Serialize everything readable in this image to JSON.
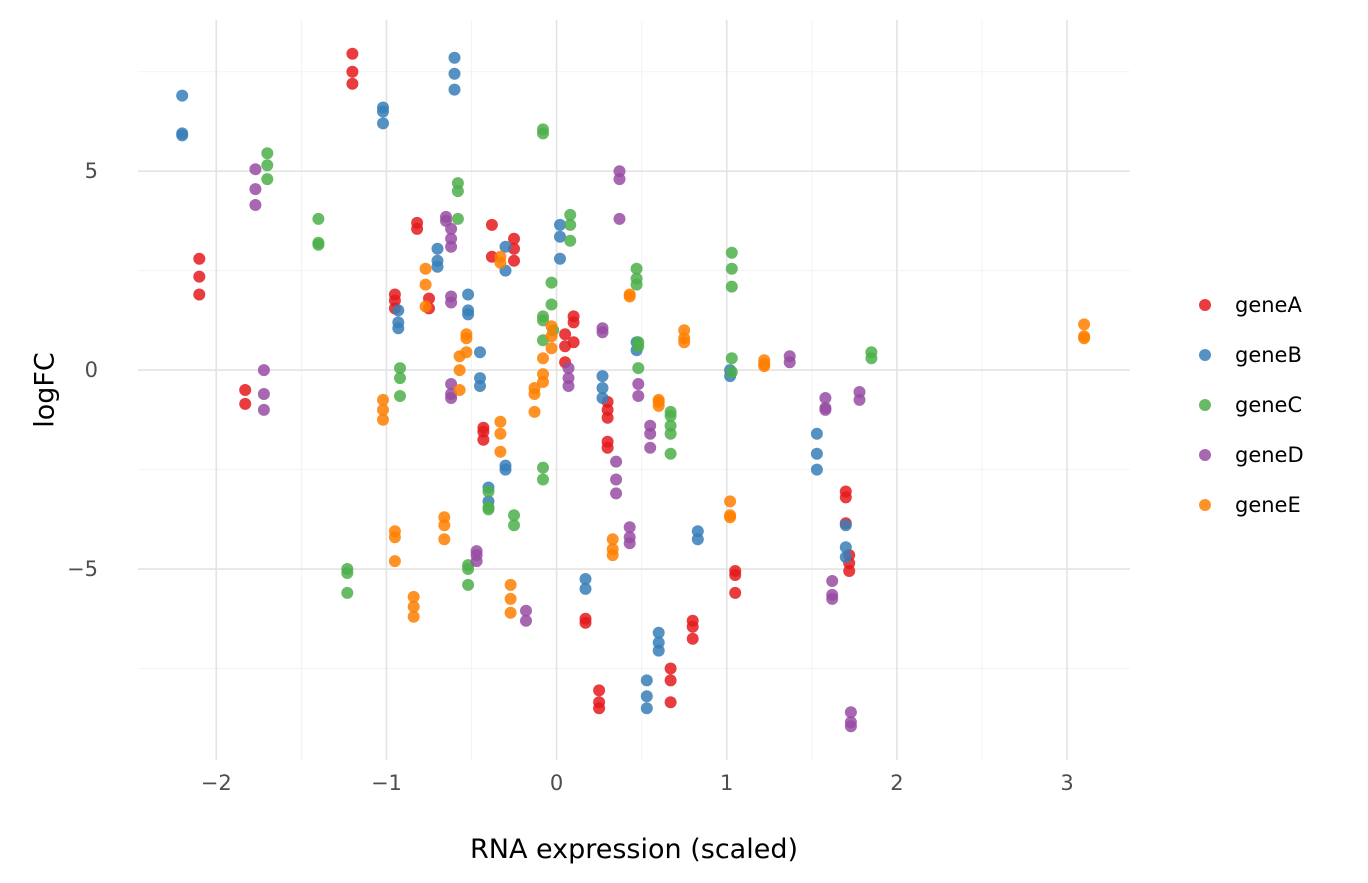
{
  "chart_data": {
    "type": "scatter",
    "title": "",
    "xlabel": "RNA expression (scaled)",
    "ylabel": "logFC",
    "xlim": [
      -2.46,
      3.37
    ],
    "ylim": [
      -9.8,
      8.8
    ],
    "x_ticks": [
      -2,
      -1,
      0,
      1,
      2,
      3
    ],
    "x_tick_labels": [
      "−2",
      "−1",
      "0",
      "1",
      "2",
      "3"
    ],
    "y_ticks": [
      -5,
      0,
      5
    ],
    "y_tick_labels": [
      "−5",
      "0",
      "5"
    ],
    "grid": true,
    "legend": "right",
    "series": [
      {
        "name": "geneA",
        "color": "#e41a1c",
        "points": [
          [
            -1.2,
            7.95
          ],
          [
            -1.2,
            7.5
          ],
          [
            -1.2,
            7.2
          ],
          [
            -2.1,
            2.8
          ],
          [
            -2.1,
            2.35
          ],
          [
            -2.1,
            1.9
          ],
          [
            -1.83,
            -0.5
          ],
          [
            -1.83,
            -0.85
          ],
          [
            -0.95,
            1.9
          ],
          [
            -0.95,
            1.75
          ],
          [
            -0.95,
            1.55
          ],
          [
            -0.82,
            3.7
          ],
          [
            -0.82,
            3.55
          ],
          [
            -0.75,
            1.8
          ],
          [
            -0.75,
            1.55
          ],
          [
            -0.38,
            3.65
          ],
          [
            -0.38,
            2.85
          ],
          [
            -0.25,
            3.3
          ],
          [
            -0.25,
            3.05
          ],
          [
            -0.25,
            2.75
          ],
          [
            -0.43,
            -1.45
          ],
          [
            -0.43,
            -1.55
          ],
          [
            -0.43,
            -1.75
          ],
          [
            0.05,
            0.9
          ],
          [
            0.05,
            0.6
          ],
          [
            0.05,
            0.2
          ],
          [
            0.1,
            1.35
          ],
          [
            0.1,
            1.2
          ],
          [
            0.1,
            0.7
          ],
          [
            0.3,
            -0.8
          ],
          [
            0.3,
            -1.0
          ],
          [
            0.3,
            -1.2
          ],
          [
            0.3,
            -1.8
          ],
          [
            0.3,
            -1.95
          ],
          [
            0.17,
            -6.25
          ],
          [
            0.17,
            -6.35
          ],
          [
            0.25,
            -8.05
          ],
          [
            0.25,
            -8.35
          ],
          [
            0.25,
            -8.5
          ],
          [
            0.67,
            -7.5
          ],
          [
            0.67,
            -7.8
          ],
          [
            0.67,
            -8.35
          ],
          [
            0.8,
            -6.3
          ],
          [
            0.8,
            -6.45
          ],
          [
            0.8,
            -6.75
          ],
          [
            1.05,
            -5.05
          ],
          [
            1.05,
            -5.15
          ],
          [
            1.05,
            -5.6
          ],
          [
            1.7,
            -3.05
          ],
          [
            1.7,
            -3.2
          ],
          [
            1.7,
            -3.85
          ],
          [
            1.72,
            -4.65
          ],
          [
            1.72,
            -4.85
          ],
          [
            1.72,
            -5.05
          ]
        ]
      },
      {
        "name": "geneB",
        "color": "#377eb8",
        "points": [
          [
            -2.2,
            6.9
          ],
          [
            -2.2,
            5.95
          ],
          [
            -2.2,
            5.9
          ],
          [
            -1.02,
            6.6
          ],
          [
            -1.02,
            6.5
          ],
          [
            -1.02,
            6.2
          ],
          [
            -0.6,
            7.85
          ],
          [
            -0.6,
            7.45
          ],
          [
            -0.6,
            7.05
          ],
          [
            -0.7,
            3.05
          ],
          [
            -0.7,
            2.75
          ],
          [
            -0.7,
            2.6
          ],
          [
            -0.93,
            1.5
          ],
          [
            -0.93,
            1.2
          ],
          [
            -0.93,
            1.05
          ],
          [
            -0.52,
            1.9
          ],
          [
            -0.52,
            1.5
          ],
          [
            -0.52,
            1.4
          ],
          [
            -0.3,
            3.1
          ],
          [
            -0.3,
            2.5
          ],
          [
            -0.45,
            0.45
          ],
          [
            -0.45,
            -0.2
          ],
          [
            -0.45,
            -0.4
          ],
          [
            0.02,
            3.65
          ],
          [
            0.02,
            3.35
          ],
          [
            0.02,
            2.8
          ],
          [
            -0.3,
            -2.4
          ],
          [
            -0.3,
            -2.5
          ],
          [
            -0.4,
            -2.95
          ],
          [
            -0.4,
            -3.3
          ],
          [
            0.27,
            -0.15
          ],
          [
            0.27,
            -0.45
          ],
          [
            0.27,
            -0.7
          ],
          [
            0.47,
            0.7
          ],
          [
            0.47,
            0.5
          ],
          [
            0.17,
            -5.25
          ],
          [
            0.17,
            -5.5
          ],
          [
            0.6,
            -6.6
          ],
          [
            0.6,
            -6.85
          ],
          [
            0.6,
            -7.05
          ],
          [
            0.53,
            -7.8
          ],
          [
            0.53,
            -8.2
          ],
          [
            0.53,
            -8.5
          ],
          [
            0.83,
            -4.05
          ],
          [
            0.83,
            -4.25
          ],
          [
            1.02,
            0.0
          ],
          [
            1.02,
            -0.15
          ],
          [
            1.53,
            -1.6
          ],
          [
            1.53,
            -2.1
          ],
          [
            1.53,
            -2.5
          ],
          [
            1.7,
            -3.9
          ],
          [
            1.7,
            -4.45
          ],
          [
            1.7,
            -4.7
          ]
        ]
      },
      {
        "name": "geneC",
        "color": "#4daf4a",
        "points": [
          [
            -1.7,
            5.45
          ],
          [
            -1.7,
            5.15
          ],
          [
            -1.7,
            4.8
          ],
          [
            -1.4,
            3.8
          ],
          [
            -1.4,
            3.2
          ],
          [
            -1.4,
            3.15
          ],
          [
            -0.58,
            4.7
          ],
          [
            -0.58,
            4.5
          ],
          [
            -0.58,
            3.8
          ],
          [
            -0.92,
            0.05
          ],
          [
            -0.92,
            -0.2
          ],
          [
            -0.92,
            -0.65
          ],
          [
            -0.08,
            6.05
          ],
          [
            -0.08,
            5.95
          ],
          [
            0.08,
            3.9
          ],
          [
            0.08,
            3.65
          ],
          [
            0.08,
            3.25
          ],
          [
            -0.03,
            2.2
          ],
          [
            -0.03,
            1.65
          ],
          [
            -0.08,
            1.35
          ],
          [
            -0.08,
            1.25
          ],
          [
            -0.08,
            0.75
          ],
          [
            -0.02,
            1.0
          ],
          [
            0.47,
            2.55
          ],
          [
            0.47,
            2.3
          ],
          [
            0.47,
            2.15
          ],
          [
            0.48,
            0.7
          ],
          [
            0.48,
            0.6
          ],
          [
            0.48,
            0.05
          ],
          [
            1.03,
            2.95
          ],
          [
            1.03,
            2.55
          ],
          [
            1.03,
            2.1
          ],
          [
            1.03,
            0.3
          ],
          [
            1.03,
            -0.05
          ],
          [
            1.85,
            0.45
          ],
          [
            1.85,
            0.3
          ],
          [
            -0.08,
            -2.45
          ],
          [
            -0.08,
            -2.75
          ],
          [
            -0.4,
            -3.05
          ],
          [
            -0.4,
            -3.45
          ],
          [
            -0.4,
            -3.5
          ],
          [
            -0.25,
            -3.65
          ],
          [
            -0.25,
            -3.9
          ],
          [
            -1.23,
            -5.0
          ],
          [
            -1.23,
            -5.1
          ],
          [
            -1.23,
            -5.6
          ],
          [
            -0.52,
            -4.9
          ],
          [
            -0.52,
            -5.0
          ],
          [
            -0.52,
            -5.4
          ],
          [
            0.67,
            -1.05
          ],
          [
            0.67,
            -1.15
          ],
          [
            0.67,
            -1.4
          ],
          [
            0.67,
            -1.6
          ],
          [
            0.67,
            -2.1
          ]
        ]
      },
      {
        "name": "geneD",
        "color": "#984ea3",
        "points": [
          [
            -1.77,
            5.05
          ],
          [
            -1.77,
            4.55
          ],
          [
            -1.77,
            4.15
          ],
          [
            -0.65,
            3.85
          ],
          [
            -0.65,
            3.75
          ],
          [
            -0.62,
            3.55
          ],
          [
            -0.62,
            3.3
          ],
          [
            -0.62,
            3.1
          ],
          [
            -0.62,
            1.85
          ],
          [
            -0.62,
            1.7
          ],
          [
            -1.72,
            0.0
          ],
          [
            -1.72,
            -0.6
          ],
          [
            -1.72,
            -1.0
          ],
          [
            -0.62,
            -0.35
          ],
          [
            -0.62,
            -0.6
          ],
          [
            -0.62,
            -0.7
          ],
          [
            0.37,
            5.0
          ],
          [
            0.37,
            4.8
          ],
          [
            0.37,
            3.8
          ],
          [
            0.27,
            1.05
          ],
          [
            0.27,
            0.95
          ],
          [
            0.07,
            0.05
          ],
          [
            0.07,
            -0.2
          ],
          [
            0.07,
            -0.4
          ],
          [
            0.48,
            -0.35
          ],
          [
            0.48,
            -0.65
          ],
          [
            0.55,
            -1.4
          ],
          [
            0.55,
            -1.6
          ],
          [
            0.55,
            -1.95
          ],
          [
            0.35,
            -2.3
          ],
          [
            0.35,
            -2.75
          ],
          [
            0.35,
            -3.1
          ],
          [
            0.43,
            -3.95
          ],
          [
            0.43,
            -4.2
          ],
          [
            0.43,
            -4.35
          ],
          [
            -0.47,
            -4.55
          ],
          [
            -0.47,
            -4.65
          ],
          [
            -0.47,
            -4.8
          ],
          [
            -0.18,
            -6.05
          ],
          [
            -0.18,
            -6.3
          ],
          [
            1.37,
            0.35
          ],
          [
            1.37,
            0.2
          ],
          [
            1.58,
            -0.7
          ],
          [
            1.58,
            -0.95
          ],
          [
            1.58,
            -1.0
          ],
          [
            1.78,
            -0.55
          ],
          [
            1.78,
            -0.75
          ],
          [
            1.62,
            -5.3
          ],
          [
            1.62,
            -5.65
          ],
          [
            1.62,
            -5.75
          ],
          [
            1.73,
            -8.6
          ],
          [
            1.73,
            -8.85
          ],
          [
            1.73,
            -8.95
          ]
        ]
      },
      {
        "name": "geneE",
        "color": "#ff7f00",
        "points": [
          [
            -0.77,
            2.55
          ],
          [
            -0.77,
            2.15
          ],
          [
            -0.77,
            1.6
          ],
          [
            -0.33,
            2.85
          ],
          [
            -0.33,
            2.7
          ],
          [
            -0.53,
            0.9
          ],
          [
            -0.53,
            0.8
          ],
          [
            -0.53,
            0.45
          ],
          [
            -0.57,
            0.35
          ],
          [
            -0.57,
            0.0
          ],
          [
            -0.57,
            -0.5
          ],
          [
            -0.03,
            1.1
          ],
          [
            -0.03,
            0.85
          ],
          [
            -0.03,
            0.55
          ],
          [
            -0.08,
            0.3
          ],
          [
            -0.08,
            -0.1
          ],
          [
            -0.08,
            -0.3
          ],
          [
            -0.13,
            -0.45
          ],
          [
            -0.13,
            -0.6
          ],
          [
            -0.13,
            -1.05
          ],
          [
            -1.02,
            -0.75
          ],
          [
            -1.02,
            -1.0
          ],
          [
            -1.02,
            -1.25
          ],
          [
            -0.33,
            -1.3
          ],
          [
            -0.33,
            -1.6
          ],
          [
            -0.33,
            -2.05
          ],
          [
            0.43,
            1.9
          ],
          [
            0.43,
            1.85
          ],
          [
            0.6,
            -0.75
          ],
          [
            0.6,
            -0.8
          ],
          [
            0.6,
            -0.9
          ],
          [
            0.75,
            1.0
          ],
          [
            0.75,
            0.8
          ],
          [
            0.75,
            0.7
          ],
          [
            1.22,
            0.25
          ],
          [
            1.22,
            0.15
          ],
          [
            1.22,
            0.1
          ],
          [
            -0.95,
            -4.05
          ],
          [
            -0.95,
            -4.2
          ],
          [
            -0.95,
            -4.8
          ],
          [
            -0.66,
            -3.7
          ],
          [
            -0.66,
            -3.9
          ],
          [
            -0.66,
            -4.25
          ],
          [
            -0.84,
            -5.7
          ],
          [
            -0.84,
            -5.95
          ],
          [
            -0.84,
            -6.2
          ],
          [
            -0.27,
            -5.4
          ],
          [
            -0.27,
            -5.75
          ],
          [
            -0.27,
            -6.1
          ],
          [
            0.33,
            -4.25
          ],
          [
            0.33,
            -4.5
          ],
          [
            0.33,
            -4.65
          ],
          [
            1.02,
            -3.3
          ],
          [
            1.02,
            -3.65
          ],
          [
            1.02,
            -3.7
          ],
          [
            3.1,
            1.15
          ],
          [
            3.1,
            0.85
          ],
          [
            3.1,
            0.8
          ]
        ]
      }
    ]
  }
}
